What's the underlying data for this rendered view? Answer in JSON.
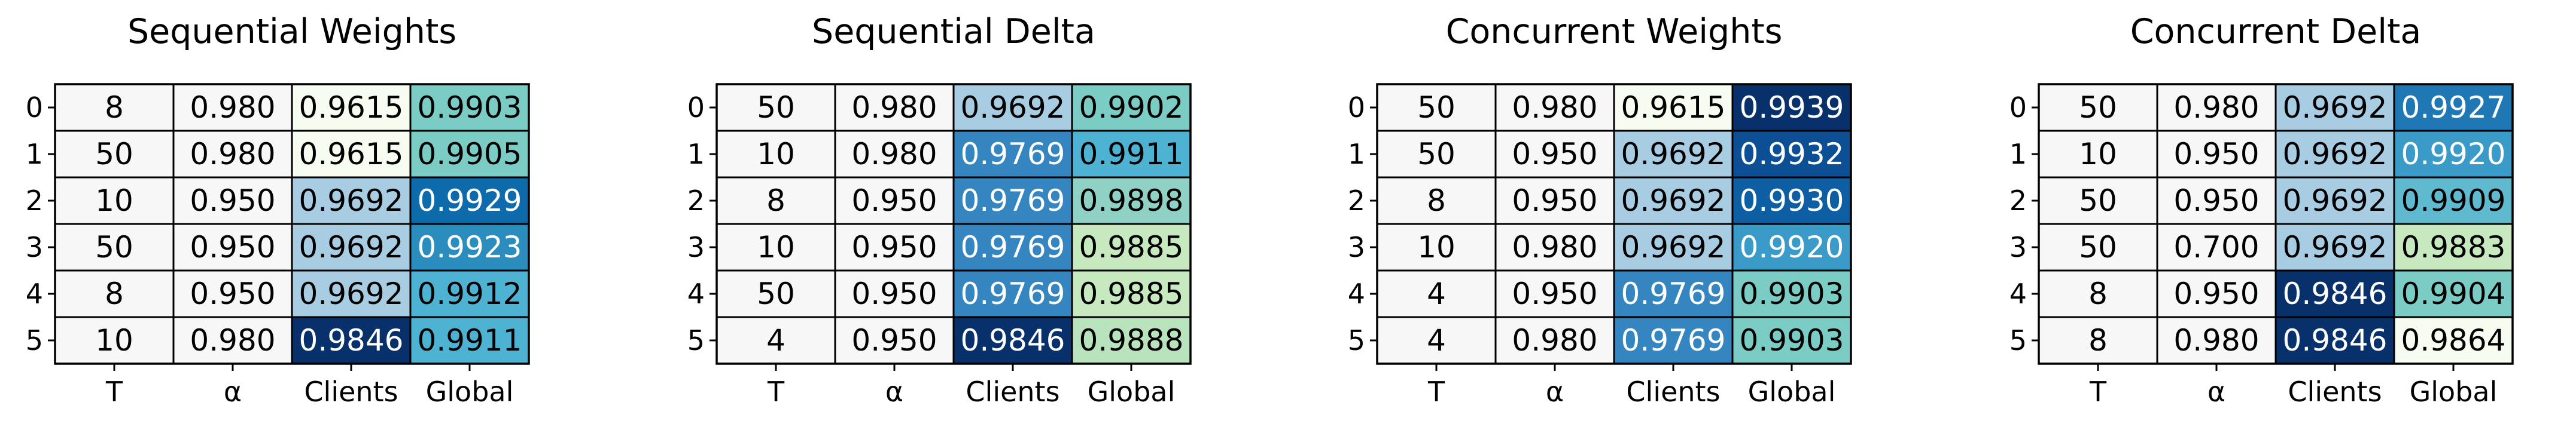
{
  "chart_data": [
    {
      "type": "table",
      "title": "Sequential Weights",
      "columns": [
        "T",
        "α",
        "Clients",
        "Global"
      ],
      "rows": [
        "0",
        "1",
        "2",
        "3",
        "4",
        "5"
      ],
      "cells": [
        [
          "8",
          "0.980",
          "0.9615",
          "0.9903"
        ],
        [
          "50",
          "0.980",
          "0.9615",
          "0.9905"
        ],
        [
          "10",
          "0.950",
          "0.9692",
          "0.9929"
        ],
        [
          "50",
          "0.950",
          "0.9692",
          "0.9923"
        ],
        [
          "8",
          "0.950",
          "0.9692",
          "0.9912"
        ],
        [
          "10",
          "0.980",
          "0.9846",
          "0.9911"
        ]
      ],
      "colors": [
        [
          "#f7f7f7",
          "#f7f7f7",
          "#f7fcf0",
          "#7bccc4"
        ],
        [
          "#f7f7f7",
          "#f7f7f7",
          "#f7fcf0",
          "#7bccc4"
        ],
        [
          "#f7f7f7",
          "#f7f7f7",
          "#a8cde3",
          "#0d6aab"
        ],
        [
          "#f7f7f7",
          "#f7f7f7",
          "#a8cde3",
          "#2b8cbe"
        ],
        [
          "#f7f7f7",
          "#f7f7f7",
          "#a8cde3",
          "#4eb3d3"
        ],
        [
          "#f7f7f7",
          "#f7f7f7",
          "#08306b",
          "#4eb3d3"
        ]
      ]
    },
    {
      "type": "table",
      "title": "Sequential Delta",
      "columns": [
        "T",
        "α",
        "Clients",
        "Global"
      ],
      "rows": [
        "0",
        "1",
        "2",
        "3",
        "4",
        "5"
      ],
      "cells": [
        [
          "50",
          "0.980",
          "0.9692",
          "0.9902"
        ],
        [
          "10",
          "0.980",
          "0.9769",
          "0.9911"
        ],
        [
          "8",
          "0.950",
          "0.9769",
          "0.9898"
        ],
        [
          "10",
          "0.950",
          "0.9769",
          "0.9885"
        ],
        [
          "50",
          "0.950",
          "0.9769",
          "0.9885"
        ],
        [
          "4",
          "0.950",
          "0.9846",
          "0.9888"
        ]
      ],
      "colors": [
        [
          "#f7f7f7",
          "#f7f7f7",
          "#a8cde3",
          "#7bccc4"
        ],
        [
          "#f7f7f7",
          "#f7f7f7",
          "#3585c0",
          "#4eb3d3"
        ],
        [
          "#f7f7f7",
          "#f7f7f7",
          "#3585c0",
          "#8fd1c4"
        ],
        [
          "#f7f7f7",
          "#f7f7f7",
          "#3585c0",
          "#c7e9c0"
        ],
        [
          "#f7f7f7",
          "#f7f7f7",
          "#3585c0",
          "#c7e9c0"
        ],
        [
          "#f7f7f7",
          "#f7f7f7",
          "#08306b",
          "#b8e3bc"
        ]
      ]
    },
    {
      "type": "table",
      "title": "Concurrent Weights",
      "columns": [
        "T",
        "α",
        "Clients",
        "Global"
      ],
      "rows": [
        "0",
        "1",
        "2",
        "3",
        "4",
        "5"
      ],
      "cells": [
        [
          "50",
          "0.980",
          "0.9615",
          "0.9939"
        ],
        [
          "50",
          "0.950",
          "0.9692",
          "0.9932"
        ],
        [
          "8",
          "0.950",
          "0.9692",
          "0.9930"
        ],
        [
          "10",
          "0.980",
          "0.9692",
          "0.9920"
        ],
        [
          "4",
          "0.950",
          "0.9769",
          "0.9903"
        ],
        [
          "4",
          "0.980",
          "0.9769",
          "0.9903"
        ]
      ],
      "colors": [
        [
          "#f7f7f7",
          "#f7f7f7",
          "#f7fcf0",
          "#08306b"
        ],
        [
          "#f7f7f7",
          "#f7f7f7",
          "#a8cde3",
          "#0c4f94"
        ],
        [
          "#f7f7f7",
          "#f7f7f7",
          "#a8cde3",
          "#0d5ea3"
        ],
        [
          "#f7f7f7",
          "#f7f7f7",
          "#a8cde3",
          "#3a9ac8"
        ],
        [
          "#f7f7f7",
          "#f7f7f7",
          "#3585c0",
          "#7bccc4"
        ],
        [
          "#f7f7f7",
          "#f7f7f7",
          "#3585c0",
          "#7bccc4"
        ]
      ]
    },
    {
      "type": "table",
      "title": "Concurrent Delta",
      "columns": [
        "T",
        "α",
        "Clients",
        "Global"
      ],
      "rows": [
        "0",
        "1",
        "2",
        "3",
        "4",
        "5"
      ],
      "cells": [
        [
          "50",
          "0.980",
          "0.9692",
          "0.9927"
        ],
        [
          "10",
          "0.950",
          "0.9692",
          "0.9920"
        ],
        [
          "50",
          "0.950",
          "0.9692",
          "0.9909"
        ],
        [
          "50",
          "0.700",
          "0.9692",
          "0.9883"
        ],
        [
          "8",
          "0.950",
          "0.9846",
          "0.9904"
        ],
        [
          "8",
          "0.980",
          "0.9846",
          "0.9864"
        ]
      ],
      "colors": [
        [
          "#f7f7f7",
          "#f7f7f7",
          "#a8cde3",
          "#1f78b4"
        ],
        [
          "#f7f7f7",
          "#f7f7f7",
          "#a8cde3",
          "#3a9ac8"
        ],
        [
          "#f7f7f7",
          "#f7f7f7",
          "#a8cde3",
          "#5fbad0"
        ],
        [
          "#f7f7f7",
          "#f7f7f7",
          "#a8cde3",
          "#c7e9c0"
        ],
        [
          "#f7f7f7",
          "#f7f7f7",
          "#08306b",
          "#7bccc4"
        ],
        [
          "#f7f7f7",
          "#f7f7f7",
          "#08306b",
          "#f7fcf0"
        ]
      ]
    }
  ]
}
